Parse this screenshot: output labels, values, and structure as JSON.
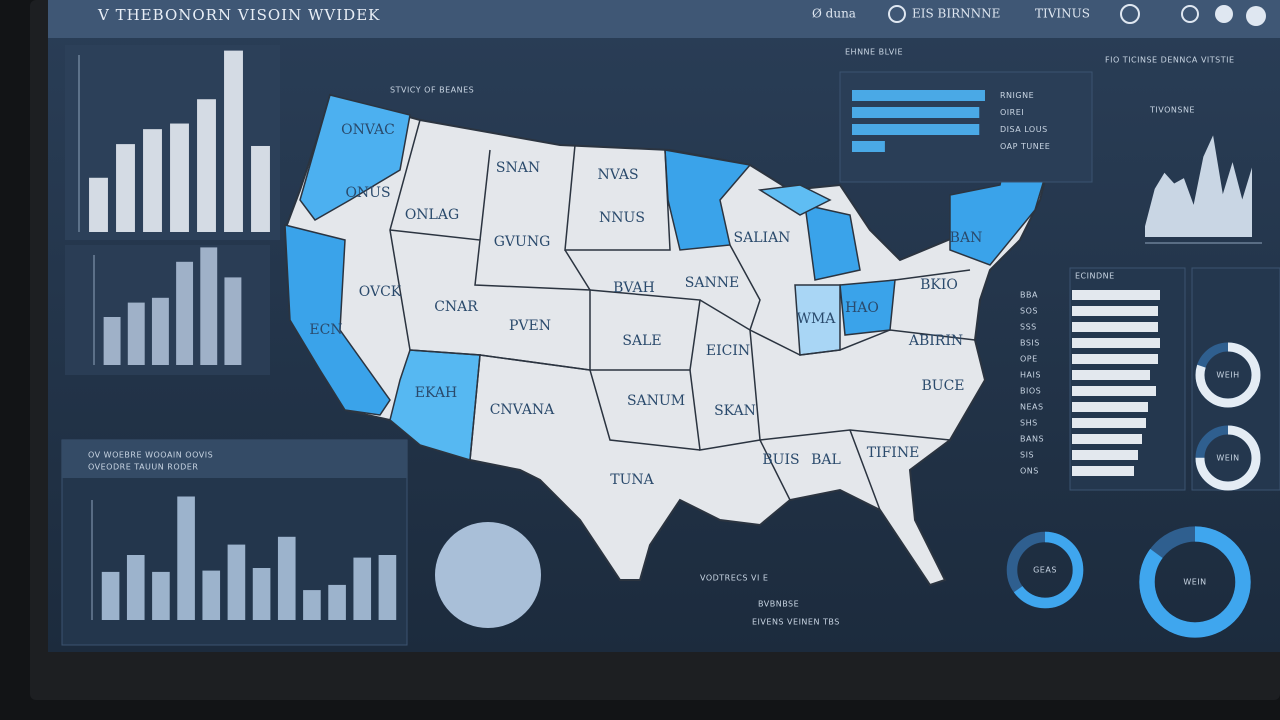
{
  "header": {
    "title": "V THEBONORN VISOIN WVIDEK",
    "nav": [
      "Ø duna",
      "EIS BIRNNNE",
      "TIVINUS"
    ]
  },
  "panels": {
    "bars_top": {
      "type": "bar",
      "ylim": [
        0,
        100
      ],
      "values": [
        29,
        47,
        55,
        58,
        71,
        97,
        46
      ]
    },
    "bars_mid": {
      "type": "bar",
      "ylim": [
        0,
        100
      ],
      "values": [
        40,
        52,
        56,
        86,
        98,
        73
      ]
    },
    "bars_bottom": {
      "type": "bar",
      "title": "OV WOEBRE WOOAIN OOVIS",
      "subtitle": "OVEODRE TAUUN RODER",
      "ylim": [
        0,
        100
      ],
      "values": [
        37,
        50,
        37,
        95,
        38,
        58,
        40,
        64,
        23,
        27,
        48,
        50
      ]
    },
    "hbars_top": {
      "type": "hbar",
      "title": "EHNNE BLVIE",
      "xlim": [
        0,
        100
      ],
      "values": [
        93,
        89,
        89,
        23
      ],
      "labels": [
        "RNIGNE",
        "OIREI",
        "DISA LOUS",
        "OAP TUNEE"
      ]
    },
    "area": {
      "type": "area",
      "title": "FIO TICINSE DENNCA VITSTIE",
      "subtitle": "TIVONSNE",
      "ylim": [
        0,
        100
      ],
      "values": [
        10,
        45,
        60,
        50,
        55,
        30,
        75,
        95,
        40,
        70,
        35,
        65
      ]
    },
    "hbars_list": {
      "type": "hbar",
      "title": "ECINDNE",
      "xlim": [
        0,
        100
      ],
      "values": [
        88,
        86,
        86,
        88,
        86,
        78,
        84,
        76,
        74,
        70,
        66,
        62
      ],
      "labels": [
        "BBA",
        "SOS",
        "SSS",
        "BSIS",
        "OPE",
        "HAIS",
        "BIOS",
        "NEAS",
        "SHS",
        "BANS",
        "SIS",
        "ONS"
      ]
    },
    "donuts": [
      {
        "type": "donut",
        "label": "WEIH",
        "value": 80
      },
      {
        "type": "donut",
        "label": "WEIN",
        "value": 75
      },
      {
        "type": "donut",
        "label": "GEAS",
        "value": 65
      },
      {
        "type": "donut",
        "label": "WEIN",
        "value": 85
      }
    ]
  },
  "map": {
    "title": "STVICY OF BEANES",
    "labels": [
      "ONVAC",
      "ONUS",
      "ONLAG",
      "SNAN",
      "NVAS",
      "NNUS",
      "GVUNG",
      "OVCK",
      "CNAR",
      "PVEN",
      "ECN",
      "BVAH",
      "SALE",
      "SANNE",
      "EICIN",
      "EKAH",
      "CNVANA",
      "SANUM",
      "SKAN",
      "TUNA",
      "BUIS",
      "BAL",
      "TIFINE",
      "BUCE",
      "ABIRIN",
      "SALIAN",
      "WMA",
      "HAO",
      "BKIO",
      "BAN"
    ],
    "footer": [
      "VODTRECS  VI  E",
      "BVBNBSE",
      "EIVENS  VEINEN TBS"
    ]
  }
}
